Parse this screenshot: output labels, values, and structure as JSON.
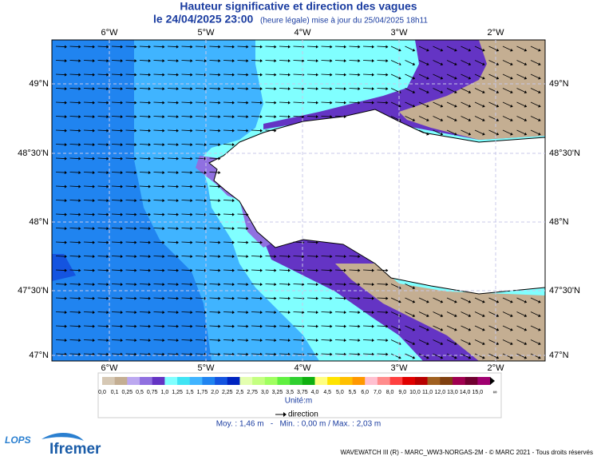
{
  "header": {
    "title": "Hauteur significative et direction des vagues",
    "date": "le 24/04/2025 23:00",
    "note": "(heure légale) mise à jour du 25/04/2025 18h11"
  },
  "map": {
    "lon_labels": [
      "6°W",
      "5°W",
      "4°W",
      "3°W",
      "2°W"
    ],
    "lat_labels": [
      "49°N",
      "48°30'N",
      "48°N",
      "47°30'N",
      "47°N"
    ]
  },
  "legend": {
    "labels": [
      "0,0",
      "0,1",
      "0,25",
      "0,5",
      "0,75",
      "1,0",
      "1,25",
      "1,5",
      "1,75",
      "2,0",
      "2,25",
      "2,5",
      "2,75",
      "3,0",
      "3,25",
      "3,5",
      "3,75",
      "4,0",
      "4,5",
      "5,0",
      "5,5",
      "6,0",
      "7,0",
      "8,0",
      "9,0",
      "10,0",
      "11,0",
      "12,0",
      "13,0",
      "14,0",
      "15,0",
      "∞"
    ],
    "colors": [
      "#d6c8b4",
      "#c4ae92",
      "#bca8f0",
      "#9070e0",
      "#6434c4",
      "#80ffff",
      "#40e4f4",
      "#40b4ff",
      "#2084f0",
      "#1454e0",
      "#0024c0",
      "#e4ffb0",
      "#c4ff80",
      "#a0ff60",
      "#60f040",
      "#30d030",
      "#10b010",
      "#ffff80",
      "#ffe400",
      "#ffc000",
      "#ff9800",
      "#ffc0d0",
      "#ff8c8c",
      "#ff4040",
      "#e00000",
      "#b80000",
      "#a06020",
      "#804010",
      "#a00050",
      "#700030",
      "#a00070"
    ],
    "unit": "Unité:m",
    "direction": "direction",
    "stats": "Moy. : 1,46 m   -   Min. : 0,00 m / Max. : 2,03 m"
  },
  "footer": {
    "credit": "WAVEWATCH III (R) - MARC_WW3-NORGAS-2M - © MARC 2021 - Tous droits réservés",
    "logo_lops": "LOPS",
    "logo_ifremer": "Ifremer"
  }
}
